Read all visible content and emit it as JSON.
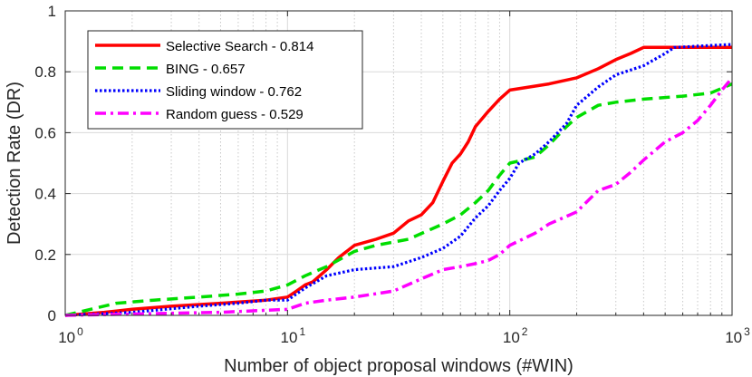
{
  "chart_data": {
    "type": "line",
    "xlabel": "Number of object proposal windows (#WIN)",
    "ylabel": "Detection Rate (DR)",
    "x_scale": "log",
    "xlim": [
      1,
      1000
    ],
    "ylim": [
      0,
      1
    ],
    "grid": true,
    "legend_position": "top-left",
    "x_tick_bases": [
      "10",
      "10",
      "10",
      "10"
    ],
    "x_tick_exponents": [
      "0",
      "1",
      "2",
      "3"
    ],
    "y_ticks": [
      "0",
      "0.2",
      "0.4",
      "0.6",
      "0.8",
      "1"
    ],
    "series": [
      {
        "name": "Selective Search - 0.814",
        "color": "#ff0000",
        "style": "solid",
        "points": [
          [
            1,
            0
          ],
          [
            1.5,
            0.01
          ],
          [
            2,
            0.02
          ],
          [
            3,
            0.03
          ],
          [
            5,
            0.04
          ],
          [
            8,
            0.05
          ],
          [
            10,
            0.06
          ],
          [
            11,
            0.08
          ],
          [
            12,
            0.1
          ],
          [
            13,
            0.11
          ],
          [
            15,
            0.15
          ],
          [
            17,
            0.19
          ],
          [
            20,
            0.23
          ],
          [
            25,
            0.25
          ],
          [
            30,
            0.27
          ],
          [
            35,
            0.31
          ],
          [
            40,
            0.33
          ],
          [
            45,
            0.37
          ],
          [
            50,
            0.44
          ],
          [
            55,
            0.5
          ],
          [
            60,
            0.53
          ],
          [
            65,
            0.57
          ],
          [
            70,
            0.62
          ],
          [
            80,
            0.67
          ],
          [
            90,
            0.71
          ],
          [
            100,
            0.74
          ],
          [
            150,
            0.76
          ],
          [
            200,
            0.78
          ],
          [
            250,
            0.81
          ],
          [
            300,
            0.84
          ],
          [
            350,
            0.86
          ],
          [
            400,
            0.88
          ],
          [
            1000,
            0.88
          ]
        ]
      },
      {
        "name": "BING - 0.657",
        "color": "#00dd00",
        "style": "dashed",
        "points": [
          [
            1,
            0
          ],
          [
            1.3,
            0.02
          ],
          [
            1.7,
            0.04
          ],
          [
            2.5,
            0.05
          ],
          [
            4,
            0.06
          ],
          [
            6,
            0.07
          ],
          [
            8,
            0.08
          ],
          [
            10,
            0.1
          ],
          [
            12,
            0.13
          ],
          [
            15,
            0.16
          ],
          [
            20,
            0.21
          ],
          [
            25,
            0.23
          ],
          [
            35,
            0.25
          ],
          [
            50,
            0.3
          ],
          [
            60,
            0.33
          ],
          [
            70,
            0.37
          ],
          [
            80,
            0.41
          ],
          [
            90,
            0.46
          ],
          [
            100,
            0.5
          ],
          [
            130,
            0.52
          ],
          [
            150,
            0.56
          ],
          [
            180,
            0.62
          ],
          [
            200,
            0.65
          ],
          [
            250,
            0.69
          ],
          [
            300,
            0.7
          ],
          [
            400,
            0.71
          ],
          [
            600,
            0.72
          ],
          [
            800,
            0.73
          ],
          [
            1000,
            0.76
          ]
        ]
      },
      {
        "name": "Sliding window - 0.762",
        "color": "#0000ff",
        "style": "dotted",
        "points": [
          [
            1,
            0
          ],
          [
            2,
            0.01
          ],
          [
            4,
            0.03
          ],
          [
            6,
            0.04
          ],
          [
            8,
            0.05
          ],
          [
            10,
            0.05
          ],
          [
            12,
            0.09
          ],
          [
            15,
            0.13
          ],
          [
            20,
            0.15
          ],
          [
            30,
            0.16
          ],
          [
            40,
            0.19
          ],
          [
            50,
            0.22
          ],
          [
            60,
            0.26
          ],
          [
            70,
            0.32
          ],
          [
            80,
            0.36
          ],
          [
            90,
            0.41
          ],
          [
            100,
            0.45
          ],
          [
            110,
            0.5
          ],
          [
            130,
            0.53
          ],
          [
            150,
            0.57
          ],
          [
            180,
            0.63
          ],
          [
            200,
            0.69
          ],
          [
            250,
            0.75
          ],
          [
            300,
            0.79
          ],
          [
            400,
            0.82
          ],
          [
            500,
            0.86
          ],
          [
            550,
            0.88
          ],
          [
            1000,
            0.89
          ]
        ]
      },
      {
        "name": "Random guess - 0.529",
        "color": "#ff00ff",
        "style": "dashdot",
        "points": [
          [
            1,
            0
          ],
          [
            5,
            0.01
          ],
          [
            10,
            0.02
          ],
          [
            12,
            0.04
          ],
          [
            15,
            0.05
          ],
          [
            20,
            0.06
          ],
          [
            30,
            0.08
          ],
          [
            40,
            0.12
          ],
          [
            50,
            0.15
          ],
          [
            60,
            0.16
          ],
          [
            70,
            0.17
          ],
          [
            80,
            0.18
          ],
          [
            90,
            0.2
          ],
          [
            100,
            0.23
          ],
          [
            130,
            0.27
          ],
          [
            150,
            0.3
          ],
          [
            200,
            0.34
          ],
          [
            250,
            0.41
          ],
          [
            300,
            0.43
          ],
          [
            350,
            0.47
          ],
          [
            400,
            0.51
          ],
          [
            500,
            0.57
          ],
          [
            600,
            0.6
          ],
          [
            700,
            0.64
          ],
          [
            800,
            0.69
          ],
          [
            900,
            0.74
          ],
          [
            1000,
            0.78
          ]
        ]
      }
    ]
  }
}
